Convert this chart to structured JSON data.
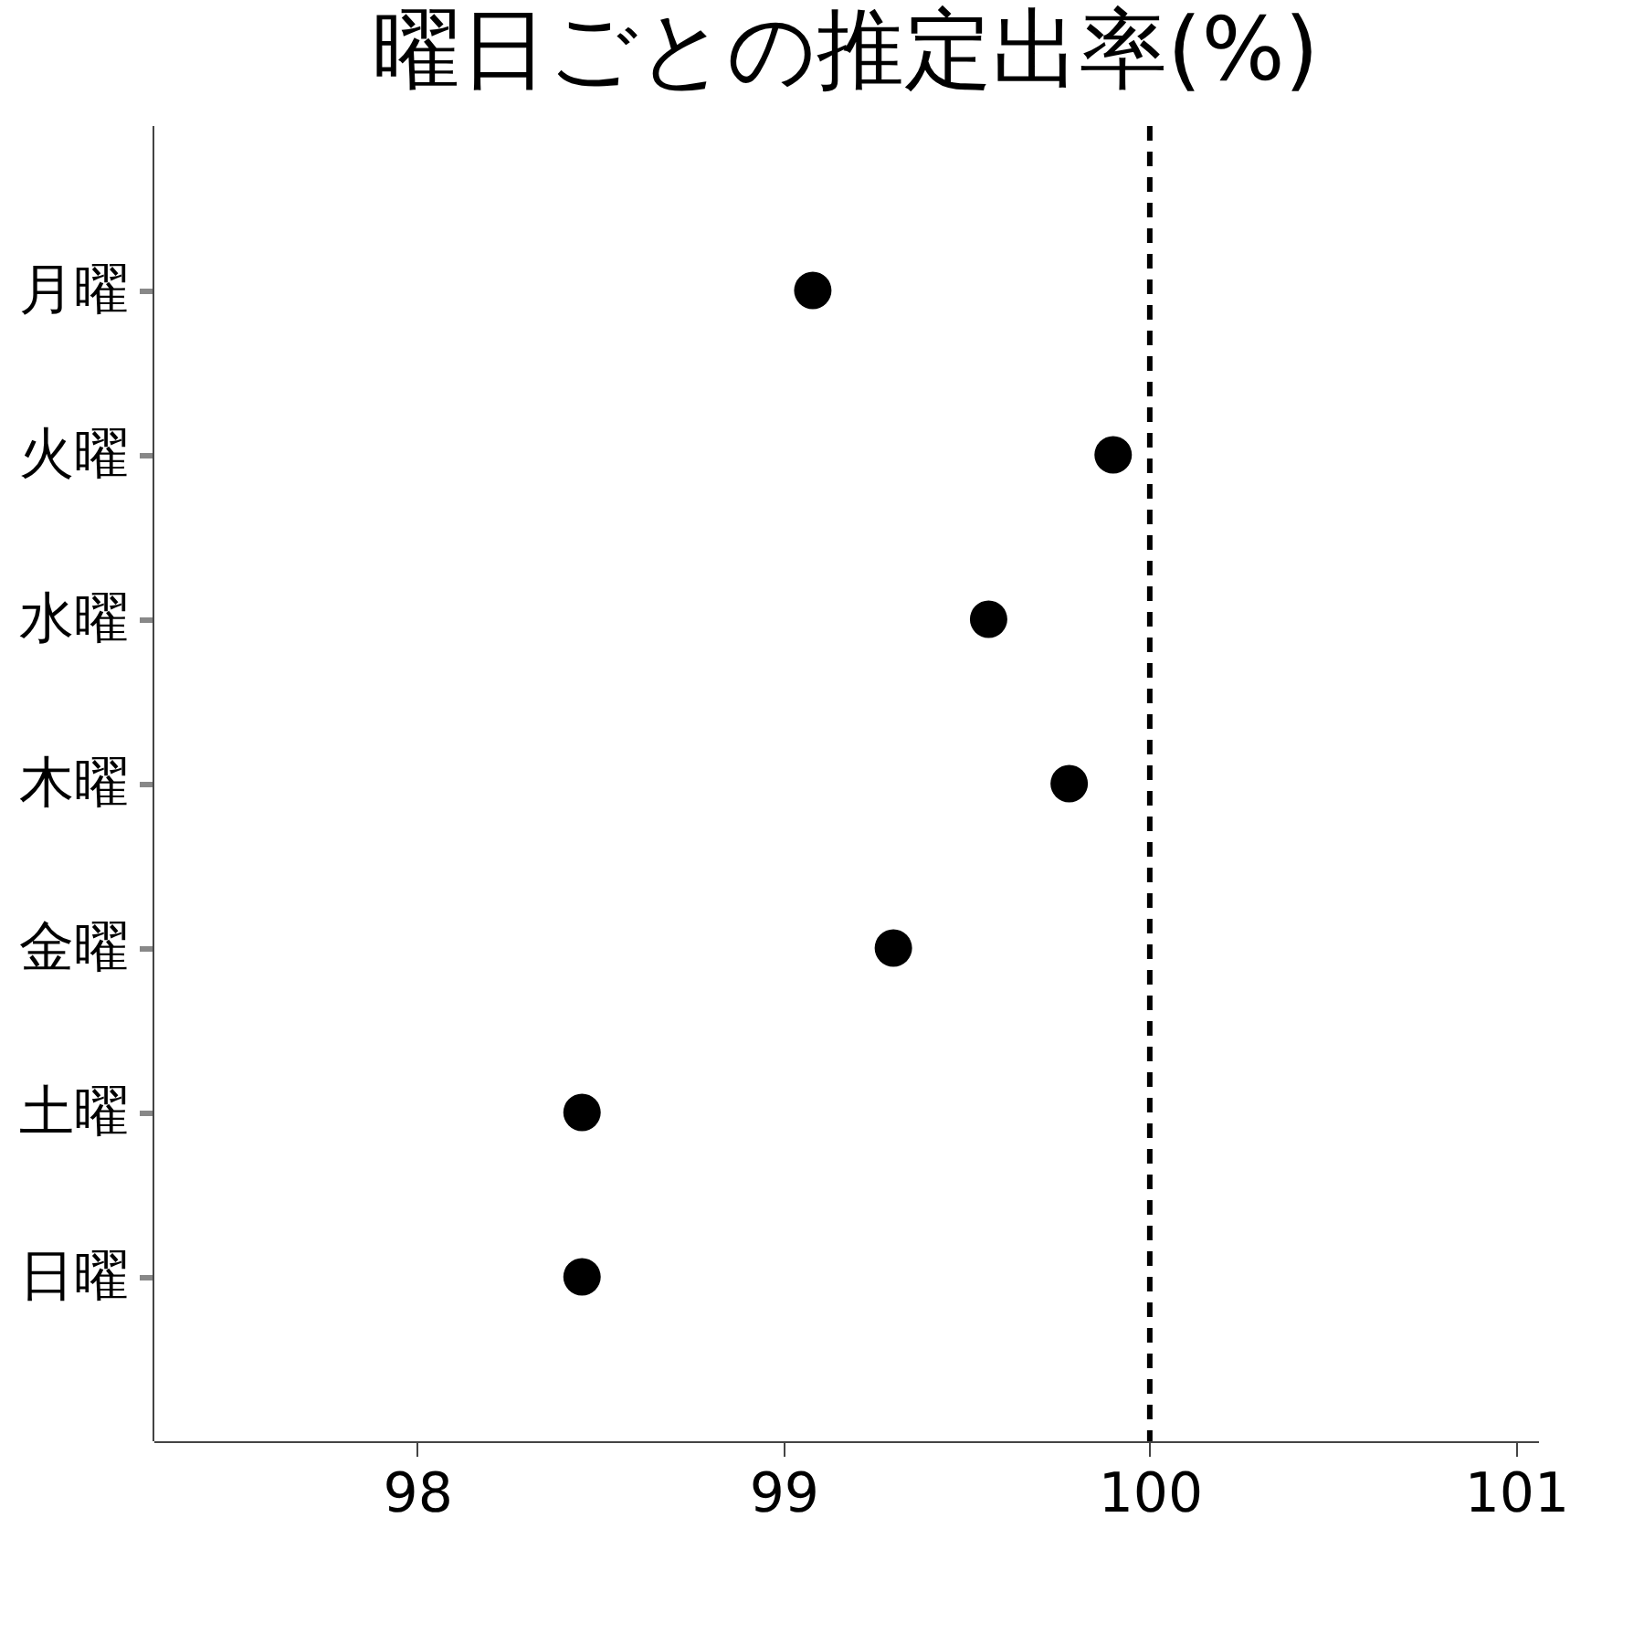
{
  "chart_data": {
    "type": "scatter",
    "title": "曜日ごとの推定出率(%)",
    "categories": [
      "月曜",
      "火曜",
      "水曜",
      "木曜",
      "金曜",
      "土曜",
      "日曜"
    ],
    "series": [
      {
        "color": "#000000",
        "values": [
          99.08,
          99.9,
          99.56,
          99.78,
          99.3,
          98.45,
          98.45
        ]
      }
    ],
    "orientation": "horizontal",
    "xlim": [
      97.28,
      101.06
    ],
    "xticks": [
      98,
      99,
      100,
      101
    ],
    "ref_lines": [
      {
        "axis": "x",
        "value": 100,
        "color": "#000000",
        "line_style": "dashed"
      }
    ],
    "marker": "circle",
    "grid": false
  }
}
